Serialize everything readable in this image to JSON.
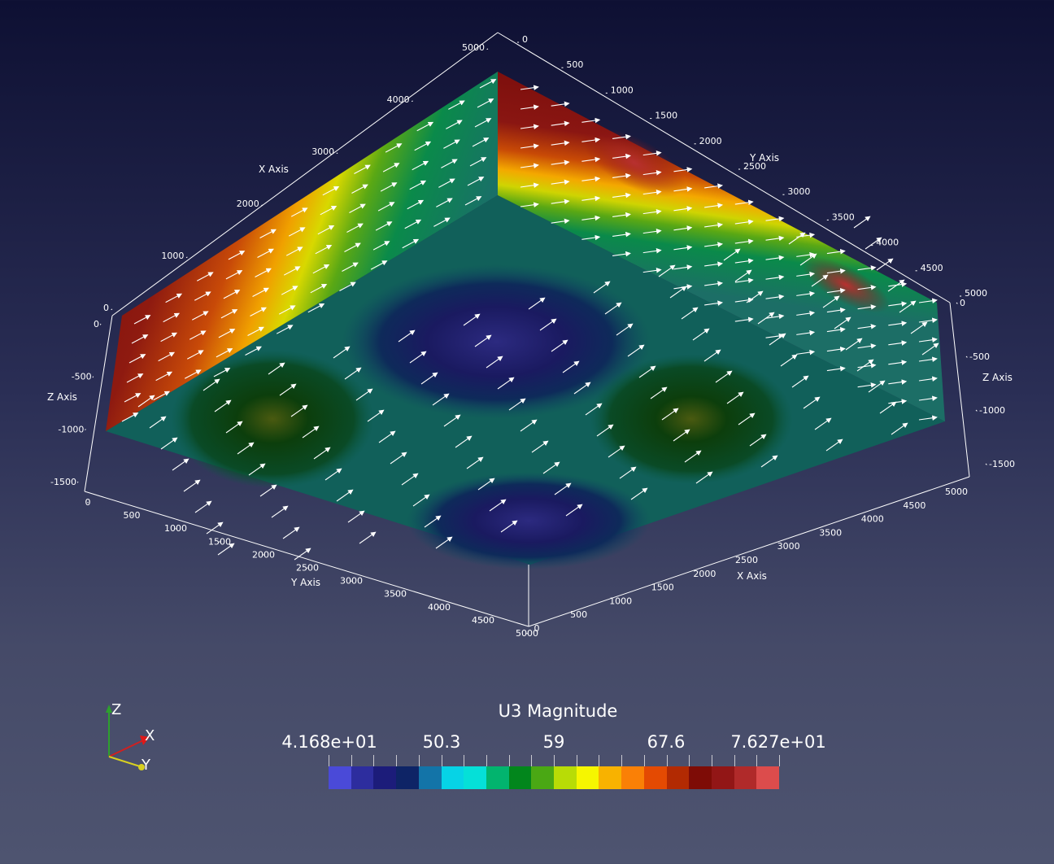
{
  "axes": {
    "x_axis_title": "X Axis",
    "y_axis_title": "Y Axis",
    "z_axis_title": "Z Axis",
    "top_left_edge_ticks": [
      "5000",
      "4000",
      "3000",
      "2000",
      "1000",
      "0"
    ],
    "top_right_edge_ticks": [
      "0",
      "500",
      "1000",
      "1500",
      "2000",
      "2500",
      "3000",
      "3500",
      "4000",
      "4500",
      "5000"
    ],
    "bottom_left_edge_ticks": [
      "0",
      "500",
      "1000",
      "1500",
      "2000",
      "2500",
      "3000",
      "3500",
      "4000",
      "4500",
      "5000"
    ],
    "bottom_right_edge_ticks": [
      "0",
      "500",
      "1000",
      "1500",
      "2000",
      "2500",
      "3000",
      "3500",
      "4000",
      "4500",
      "5000"
    ],
    "z_left_ticks": [
      "0",
      "-500",
      "-1000",
      "-1500"
    ],
    "z_right_ticks": [
      "0",
      "-500",
      "-1000",
      "-1500"
    ]
  },
  "legend": {
    "title": "U3 Magnitude",
    "labels": [
      "4.168e+01",
      "50.3",
      "59",
      "67.6",
      "7.627e+01"
    ],
    "colors": [
      "#4a4ad8",
      "#2d2d9e",
      "#1c1c7a",
      "#0e2466",
      "#1374a8",
      "#06d3e6",
      "#05e0d8",
      "#02b46e",
      "#02861c",
      "#4aa814",
      "#b8dc06",
      "#f6f600",
      "#f8b200",
      "#fa8006",
      "#e44a02",
      "#b22a02",
      "#7e0c06",
      "#921616",
      "#b02a2a",
      "#dc4c4c"
    ]
  },
  "orientation": {
    "x": "X",
    "y": "Y",
    "z": "Z"
  }
}
